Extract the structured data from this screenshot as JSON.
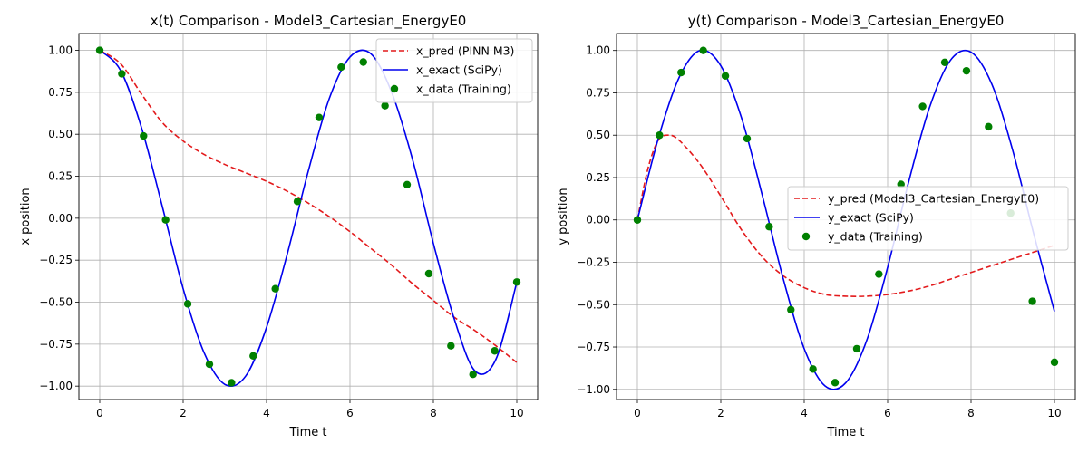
{
  "chart_data": [
    {
      "type": "line",
      "title": "x(t) Comparison - Model3_Cartesian_EnergyE0",
      "xlabel": "Time t",
      "ylabel": "x position",
      "xlim": [
        -0.5,
        10.5
      ],
      "ylim": [
        -1.08,
        1.1
      ],
      "xticks": [
        0,
        2,
        4,
        6,
        8,
        10
      ],
      "yticks": [
        -1.0,
        -0.75,
        -0.5,
        -0.25,
        0.0,
        0.25,
        0.5,
        0.75,
        1.0
      ],
      "grid": true,
      "legend_position": "top-right",
      "series": [
        {
          "name": "x_pred (PINN M3)",
          "kind": "line",
          "style": "dashed",
          "color": "#e31a1c",
          "x": [
            0,
            0.5,
            1,
            1.5,
            2,
            2.5,
            3,
            3.5,
            4,
            4.5,
            5,
            5.5,
            6,
            6.5,
            7,
            7.5,
            8,
            8.5,
            9,
            9.5,
            10
          ],
          "y": [
            1.0,
            0.92,
            0.74,
            0.57,
            0.46,
            0.38,
            0.32,
            0.27,
            0.22,
            0.16,
            0.09,
            0.01,
            -0.08,
            -0.18,
            -0.28,
            -0.39,
            -0.49,
            -0.59,
            -0.67,
            -0.76,
            -0.86
          ]
        },
        {
          "name": "x_exact (SciPy)",
          "kind": "line",
          "style": "solid",
          "color": "#0000ee",
          "x": [
            0,
            0.5,
            1,
            1.5,
            2,
            2.5,
            3,
            3.5,
            4,
            4.5,
            5,
            5.5,
            6,
            6.5,
            7,
            7.5,
            8,
            8.5,
            9,
            9.5,
            10
          ],
          "y": [
            1.0,
            0.88,
            0.54,
            0.07,
            -0.42,
            -0.8,
            -0.99,
            -0.94,
            -0.65,
            -0.21,
            0.28,
            0.71,
            0.96,
            0.98,
            0.75,
            0.35,
            -0.15,
            -0.6,
            -0.91,
            -0.84,
            -0.38
          ]
        },
        {
          "name": "x_data (Training)",
          "kind": "scatter",
          "color": "#008000",
          "x": [
            0,
            0.53,
            1.05,
            1.58,
            2.11,
            2.63,
            3.16,
            3.68,
            4.21,
            4.74,
            5.26,
            5.79,
            6.32,
            6.84,
            7.37,
            7.89,
            8.42,
            8.95,
            9.47,
            10
          ],
          "y": [
            1.0,
            0.86,
            0.49,
            -0.01,
            -0.51,
            -0.87,
            -0.98,
            -0.82,
            -0.42,
            0.1,
            0.6,
            0.9,
            0.93,
            0.67,
            0.2,
            -0.33,
            -0.76,
            -0.93,
            -0.79,
            -0.38
          ]
        }
      ]
    },
    {
      "type": "line",
      "title": "y(t) Comparison - Model3_Cartesian_EnergyE0",
      "xlabel": "Time t",
      "ylabel": "y position",
      "xlim": [
        -0.5,
        10.5
      ],
      "ylim": [
        -1.06,
        1.1
      ],
      "xticks": [
        0,
        2,
        4,
        6,
        8,
        10
      ],
      "yticks": [
        -1.0,
        -0.75,
        -0.5,
        -0.25,
        0.0,
        0.25,
        0.5,
        0.75,
        1.0
      ],
      "grid": true,
      "legend_position": "center-right",
      "series": [
        {
          "name": "y_pred (Model3_Cartesian_EnergyE0)",
          "kind": "line",
          "style": "dashed",
          "color": "#e31a1c",
          "x": [
            0,
            0.25,
            0.5,
            0.75,
            1,
            1.5,
            2,
            2.5,
            3,
            3.5,
            4,
            4.5,
            5,
            5.5,
            6,
            6.5,
            7,
            7.5,
            8,
            8.5,
            9,
            9.5,
            10
          ],
          "y": [
            0.0,
            0.3,
            0.47,
            0.5,
            0.47,
            0.33,
            0.14,
            -0.06,
            -0.22,
            -0.33,
            -0.4,
            -0.44,
            -0.45,
            -0.45,
            -0.44,
            -0.42,
            -0.39,
            -0.35,
            -0.31,
            -0.27,
            -0.23,
            -0.19,
            -0.15
          ]
        },
        {
          "name": "y_exact (SciPy)",
          "kind": "line",
          "style": "solid",
          "color": "#0000ee",
          "x": [
            0,
            0.5,
            1,
            1.5,
            2,
            2.5,
            3,
            3.5,
            4,
            4.5,
            5,
            5.5,
            6,
            6.5,
            7,
            7.5,
            8,
            8.5,
            9,
            9.5,
            10
          ],
          "y": [
            0.0,
            0.48,
            0.84,
            1.0,
            0.91,
            0.6,
            0.14,
            -0.35,
            -0.76,
            -0.98,
            -0.96,
            -0.71,
            -0.28,
            0.22,
            0.66,
            0.94,
            0.99,
            0.8,
            0.41,
            -0.08,
            -0.54
          ]
        },
        {
          "name": "y_data (Training)",
          "kind": "scatter",
          "color": "#008000",
          "x": [
            0,
            0.53,
            1.05,
            1.58,
            2.11,
            2.63,
            3.16,
            3.68,
            4.21,
            4.74,
            5.26,
            5.79,
            6.32,
            6.84,
            7.37,
            7.89,
            8.42,
            8.95,
            9.47,
            10
          ],
          "y": [
            0.0,
            0.5,
            0.87,
            1.0,
            0.85,
            0.48,
            -0.04,
            -0.53,
            -0.88,
            -0.96,
            -0.76,
            -0.32,
            0.21,
            0.67,
            0.93,
            0.88,
            0.55,
            0.04,
            -0.48,
            -0.84
          ]
        }
      ]
    }
  ]
}
